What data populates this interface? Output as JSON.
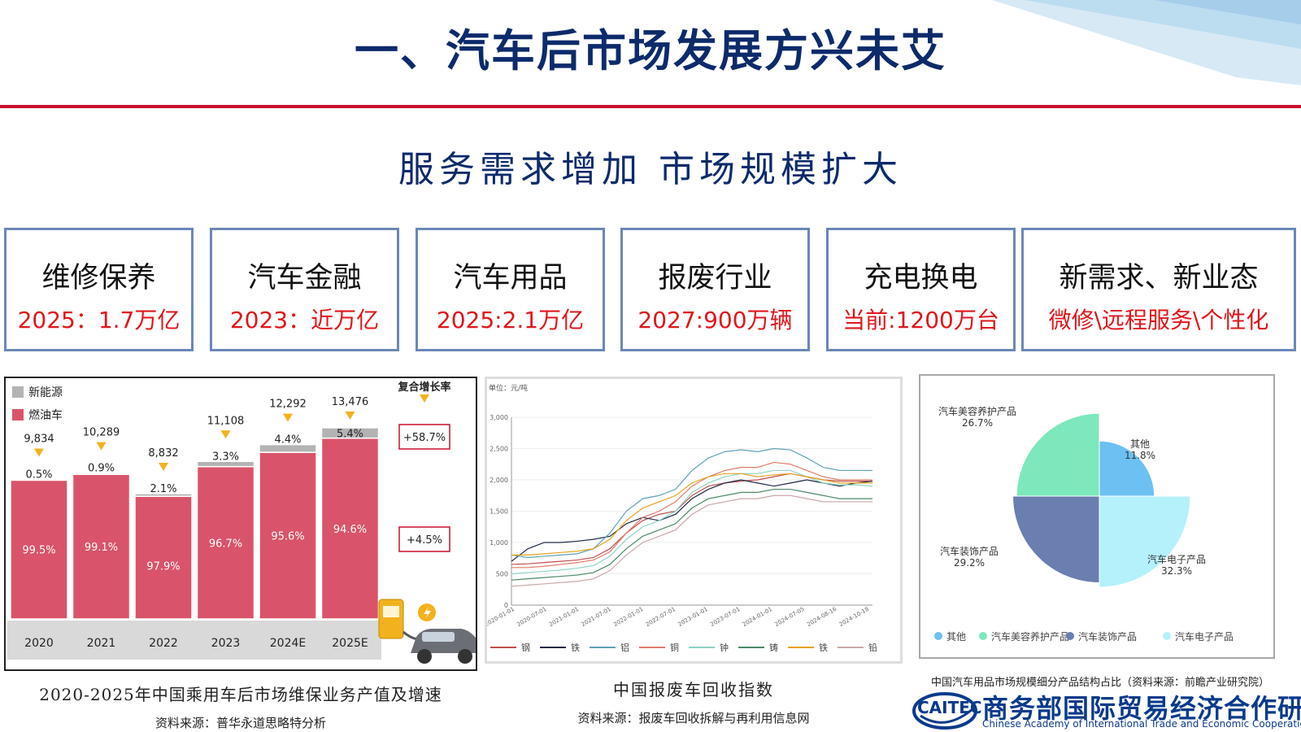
{
  "header": {
    "title": "一、汽车后市场发展方兴未艾",
    "subtitle": "服务需求增加  市场规模扩大",
    "accent_red": "#c8102e",
    "title_color": "#0d2a6b"
  },
  "cards": [
    {
      "title": "维修保养",
      "value": "2025：1.7万亿"
    },
    {
      "title": "汽车金融",
      "value": "2023：近万亿"
    },
    {
      "title": "汽车用品",
      "value": "2025:2.1万亿"
    },
    {
      "title": "报废行业",
      "value": "2027:900万辆"
    },
    {
      "title": "充电换电",
      "value": "当前:1200万台"
    },
    {
      "title": "新需求、新业态",
      "value": "微修\\远程服务\\个性化"
    }
  ],
  "chart_data": [
    {
      "type": "bar",
      "caption": "2020-2025年中国乘用车后市场维保业务产值及增速",
      "source": "资料来源：普华永道思略特分析",
      "categories": [
        "2020",
        "2021",
        "2022",
        "2023",
        "2024E",
        "2025E"
      ],
      "totals": [
        9834,
        10289,
        8832,
        11108,
        12292,
        13476
      ],
      "total_labels": [
        "9,834",
        "10,289",
        "8,832",
        "11,108",
        "12,292",
        "13,476"
      ],
      "series": [
        {
          "name": "新能源",
          "color": "#b3b3b3",
          "share_labels": [
            "0.5%",
            "0.9%",
            "2.1%",
            "3.3%",
            "4.4%",
            "5.4%"
          ],
          "shares": [
            0.5,
            0.9,
            2.1,
            3.3,
            4.4,
            5.4
          ]
        },
        {
          "name": "燃油车",
          "color": "#d9546a",
          "share_labels": [
            "99.5%",
            "99.1%",
            "97.9%",
            "96.7%",
            "95.6%",
            "94.6%"
          ],
          "shares": [
            99.5,
            99.1,
            97.9,
            96.7,
            95.6,
            94.6
          ]
        }
      ],
      "cagr_title": "复合增长率",
      "cagr": [
        "+58.7%",
        "+4.5%"
      ]
    },
    {
      "type": "line",
      "caption": "中国报废车回收指数",
      "source": "资料来源：报废车回收拆解与再利用信息网",
      "ylabel": "单位：元/吨",
      "ylim": [
        0,
        3000
      ],
      "yticks": [
        "0",
        "500",
        "1,000",
        "1,500",
        "2,000",
        "2,500",
        "3,000"
      ],
      "xticks": [
        "2020-01-01",
        "2020-07-01",
        "2021-01-01",
        "2021-07-01",
        "2022-01-01",
        "2022-07-01",
        "2023-01-01",
        "2023-07-01",
        "2024-01-01",
        "2024-07-05",
        "2024-08-16",
        "2024-10-18"
      ],
      "x": [
        0,
        2,
        4,
        6,
        8,
        10,
        12,
        14,
        16,
        18,
        20,
        22,
        24,
        26,
        28,
        30,
        32,
        34,
        36,
        38,
        40,
        42,
        44
      ],
      "series": [
        {
          "name": "钢",
          "color": "#c0504d",
          "values": [
            650,
            660,
            680,
            700,
            720,
            760,
            900,
            1150,
            1350,
            1450,
            1500,
            1750,
            1900,
            1950,
            1980,
            2000,
            2050,
            2100,
            2050,
            2000,
            1980,
            1980,
            1980
          ]
        },
        {
          "name": "铁",
          "color": "#1f2a44",
          "values": [
            700,
            900,
            1000,
            1000,
            1020,
            1050,
            1100,
            1300,
            1400,
            1350,
            1450,
            1700,
            1850,
            1950,
            2000,
            1950,
            1900,
            1950,
            2000,
            1950,
            1900,
            1950,
            1980
          ]
        },
        {
          "name": "铝",
          "color": "#5fa3b5",
          "values": [
            800,
            760,
            780,
            800,
            820,
            900,
            1150,
            1500,
            1700,
            1750,
            1850,
            2150,
            2350,
            2450,
            2480,
            2450,
            2500,
            2480,
            2350,
            2200,
            2150,
            2150,
            2150
          ]
        },
        {
          "name": "铜",
          "color": "#e07b6a",
          "values": [
            600,
            600,
            620,
            650,
            680,
            720,
            850,
            1150,
            1400,
            1500,
            1650,
            1900,
            2050,
            2150,
            2200,
            2200,
            2280,
            2250,
            2150,
            2050,
            2000,
            2000,
            2000
          ]
        },
        {
          "name": "钟",
          "color": "#8fd3c5",
          "values": [
            500,
            520,
            540,
            560,
            590,
            630,
            780,
            1050,
            1250,
            1350,
            1500,
            1800,
            1950,
            2050,
            2100,
            2100,
            2150,
            2150,
            2050,
            1950,
            1920,
            1920,
            1900
          ]
        },
        {
          "name": "铸",
          "color": "#4d8a6a",
          "values": [
            400,
            420,
            440,
            460,
            480,
            520,
            650,
            900,
            1100,
            1200,
            1300,
            1550,
            1700,
            1750,
            1800,
            1800,
            1850,
            1850,
            1800,
            1750,
            1700,
            1700,
            1700
          ]
        },
        {
          "name": "铁",
          "color": "#e5a320",
          "values": [
            800,
            800,
            820,
            840,
            860,
            900,
            1050,
            1350,
            1550,
            1650,
            1750,
            1950,
            2050,
            2100,
            2100,
            2050,
            2080,
            2100,
            2050,
            2000,
            1950,
            1950,
            1950
          ]
        },
        {
          "name": "铅",
          "color": "#c9a8a8",
          "values": [
            300,
            320,
            340,
            360,
            380,
            420,
            550,
            800,
            1000,
            1100,
            1200,
            1450,
            1600,
            1650,
            1700,
            1700,
            1750,
            1750,
            1700,
            1650,
            1650,
            1650,
            1650
          ]
        }
      ]
    },
    {
      "type": "pie",
      "caption": "中国汽车用品市场规模细分产品结构占比（资料来源：前瞻产业研究院）",
      "categories": [
        "其他",
        "汽车美容养护产品",
        "汽车装饰产品",
        "汽车电子产品"
      ],
      "values": [
        11.8,
        26.7,
        29.2,
        32.3
      ],
      "labels": [
        "11.8%",
        "26.7%",
        "29.2%",
        "32.3%"
      ],
      "colors": [
        "#6cc0f2",
        "#7ce8bb",
        "#6a7fb0",
        "#b5f1fb"
      ]
    }
  ],
  "logo": {
    "mark": "CAITEC",
    "name_cn": "商务部国际贸易经济合作研究院",
    "name_en": "Chinese Academy of International Trade and Economic Cooperation"
  }
}
